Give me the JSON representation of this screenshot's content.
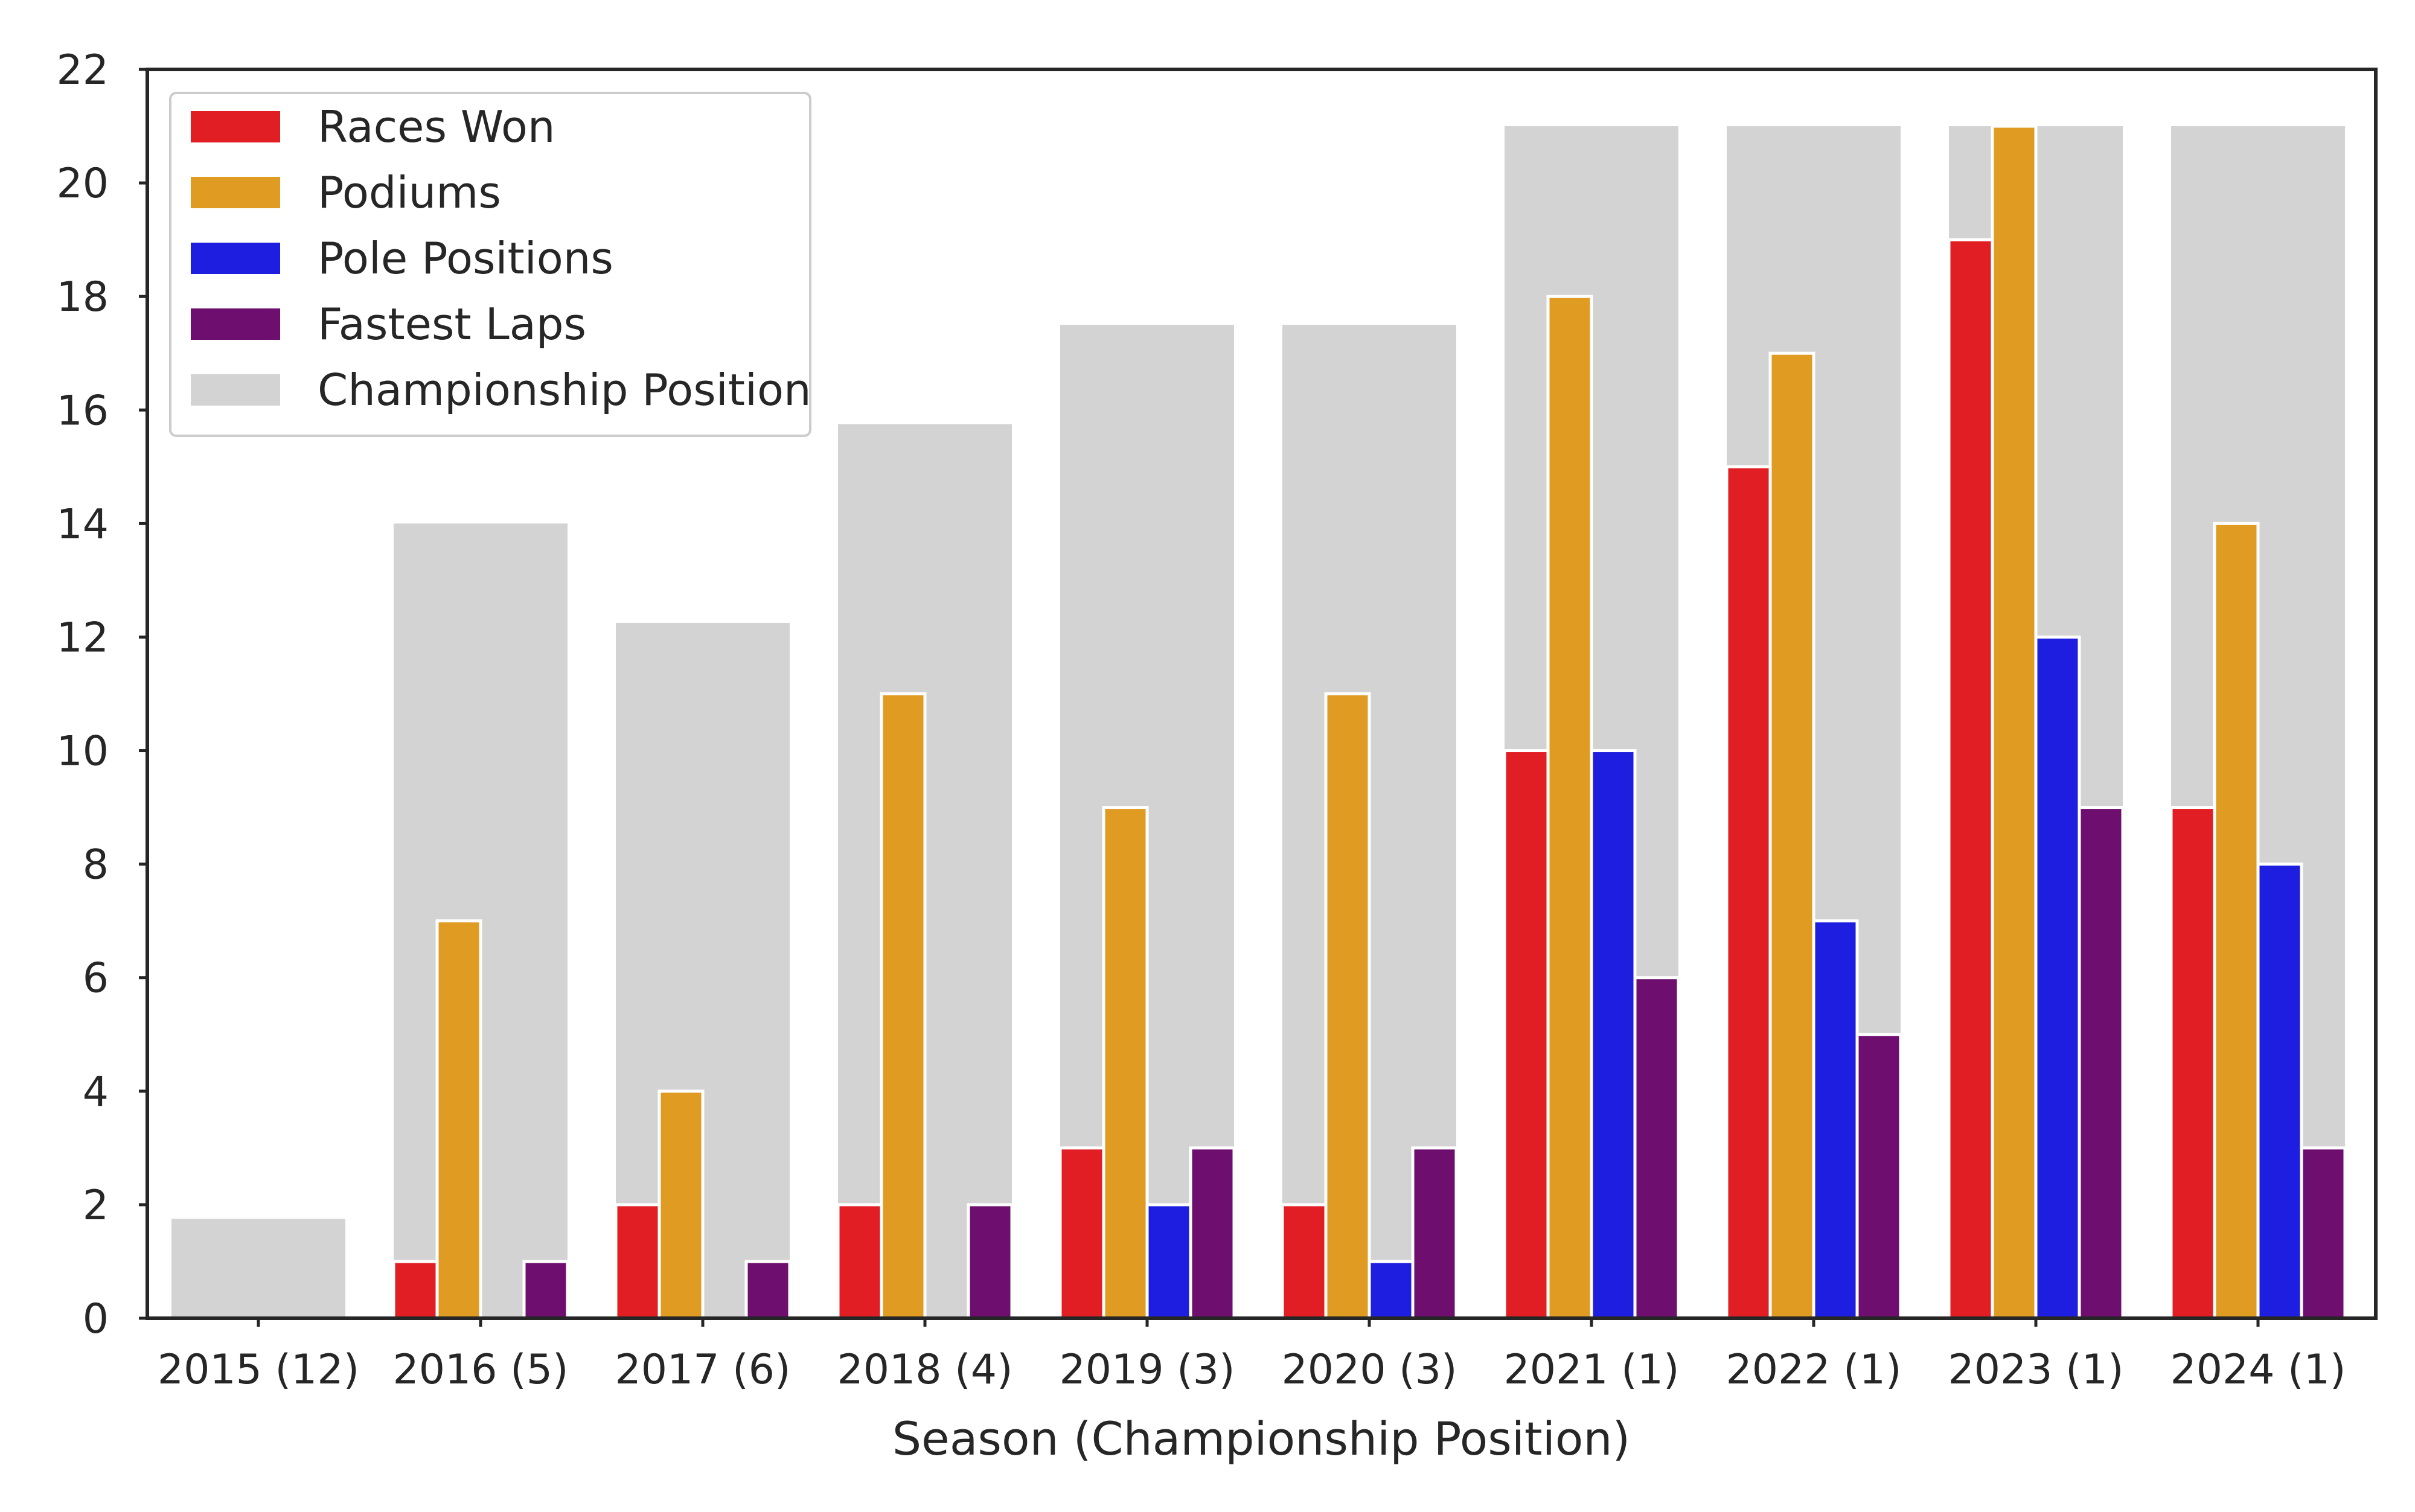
{
  "colors": {
    "races_won": "#e11e24",
    "podiums": "#e09b22",
    "pole_positions": "#1e1ee0",
    "fastest_laps": "#6e0f70",
    "championship_position": "#d3d3d3",
    "axis": "#262626",
    "bar_edge": "#ffffff"
  },
  "chart_data": {
    "type": "bar",
    "title": "",
    "xlabel": "Season (Championship Position)",
    "ylabel": "",
    "ylim": [
      0,
      22
    ],
    "yticks": [
      0,
      2,
      4,
      6,
      8,
      10,
      12,
      14,
      16,
      18,
      20,
      22
    ],
    "grid": false,
    "legend_position": "top-left",
    "categories": [
      "2015 (12)",
      "2016 (5)",
      "2017 (6)",
      "2018 (4)",
      "2019 (3)",
      "2020 (3)",
      "2021 (1)",
      "2022 (1)",
      "2023 (1)",
      "2024 (1)"
    ],
    "background_series": {
      "name": "Championship Position",
      "values": [
        1.75,
        14.0,
        12.25,
        15.75,
        17.5,
        17.5,
        21.0,
        21.0,
        21.0,
        21.0
      ]
    },
    "series": [
      {
        "name": "Races Won",
        "values": [
          0,
          1,
          2,
          2,
          3,
          2,
          10,
          15,
          19,
          9
        ]
      },
      {
        "name": "Podiums",
        "values": [
          0,
          7,
          4,
          11,
          9,
          11,
          18,
          17,
          21,
          14
        ]
      },
      {
        "name": "Pole Positions",
        "values": [
          0,
          0,
          0,
          0,
          2,
          1,
          10,
          7,
          12,
          8
        ]
      },
      {
        "name": "Fastest Laps",
        "values": [
          0,
          1,
          1,
          2,
          3,
          3,
          6,
          5,
          9,
          3
        ]
      }
    ]
  }
}
